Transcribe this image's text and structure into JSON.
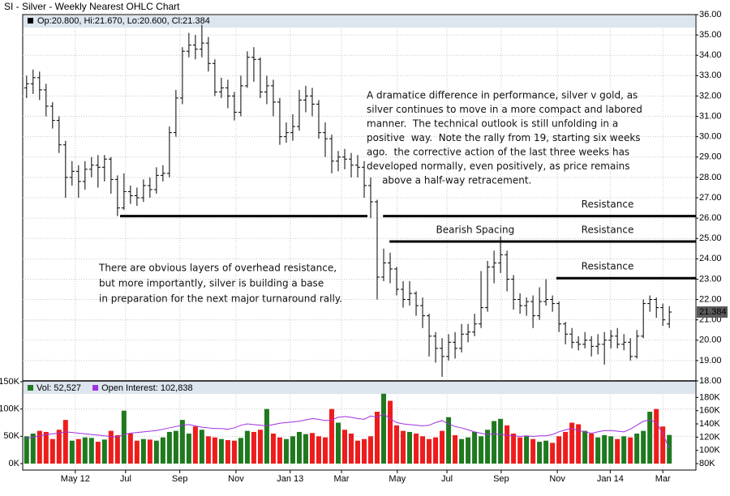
{
  "chart_data": [
    {
      "type": "ohlc",
      "title": "SI - Silver - Weekly Nearest OHLC Chart",
      "ohlc_legend": "Op:20.800, Hi:21.670, Lo:20.600, Cl:21.384",
      "last_label": "21.384",
      "color": "#000000",
      "xlim": [
        -0.6,
        103.1
      ],
      "ylim": [
        18,
        36
      ],
      "yticks": [
        {
          "value": 18,
          "label": "18.00"
        },
        {
          "value": 19,
          "label": "19.00"
        },
        {
          "value": 20,
          "label": "20.00"
        },
        {
          "value": 21,
          "label": "21.00"
        },
        {
          "value": 22,
          "label": "22.00"
        },
        {
          "value": 23,
          "label": "23.00"
        },
        {
          "value": 24,
          "label": "24.00"
        },
        {
          "value": 25,
          "label": "25.00"
        },
        {
          "value": 26,
          "label": "26.00"
        },
        {
          "value": 27,
          "label": "27.00"
        },
        {
          "value": 28,
          "label": "28.00"
        },
        {
          "value": 29,
          "label": "29.00"
        },
        {
          "value": 30,
          "label": "30.00"
        },
        {
          "value": 31,
          "label": "31.00"
        },
        {
          "value": 32,
          "label": "32.00"
        },
        {
          "value": 33,
          "label": "33.00"
        },
        {
          "value": 34,
          "label": "34.00"
        },
        {
          "value": 35,
          "label": "35.00"
        },
        {
          "value": 36,
          "label": "36.00"
        }
      ],
      "grid": true,
      "open": [
        32.4,
        32.6,
        32.9,
        32.3,
        31.5,
        30.8,
        29.6,
        28.0,
        28.3,
        27.8,
        28.4,
        28.6,
        28.5,
        28.9,
        27.9,
        26.5,
        27.3,
        27.1,
        27.0,
        27.6,
        27.4,
        28.1,
        28.2,
        30.2,
        31.9,
        34.2,
        34.5,
        34.3,
        34.6,
        33.6,
        32.2,
        32.4,
        32.0,
        31.2,
        32.5,
        33.9,
        33.8,
        32.2,
        32.5,
        31.7,
        30.0,
        30.2,
        30.5,
        31.8,
        32.0,
        31.6,
        30.2,
        29.9,
        28.8,
        29.0,
        28.9,
        28.6,
        28.5,
        27.6,
        26.8,
        23.1,
        23.8,
        23.5,
        22.5,
        22.0,
        22.3,
        21.7,
        21.2,
        20.2,
        19.6,
        19.2,
        19.9,
        19.6,
        20.3,
        20.4,
        20.8,
        21.6,
        23.6,
        23.8,
        24.2,
        23.0,
        22.0,
        21.7,
        21.9,
        21.2,
        21.9,
        22.0,
        21.8,
        20.8,
        20.3,
        19.9,
        19.8,
        20.0,
        19.7,
        19.8,
        20.0,
        20.2,
        19.8,
        19.9,
        19.2,
        20.2,
        21.8,
        22.0,
        21.6,
        20.8
      ],
      "high": [
        33.0,
        33.3,
        33.2,
        32.6,
        31.7,
        31.0,
        29.8,
        28.8,
        28.6,
        28.8,
        29.0,
        29.1,
        29.1,
        29.0,
        28.1,
        28.2,
        27.6,
        27.5,
        27.9,
        28.0,
        28.5,
        28.6,
        30.5,
        32.3,
        34.4,
        35.1,
        35.0,
        35.5,
        34.9,
        33.8,
        32.9,
        32.8,
        32.2,
        33.0,
        34.2,
        34.4,
        33.9,
        33.0,
        32.8,
        31.9,
        30.7,
        31.1,
        32.3,
        32.5,
        32.4,
        31.8,
        30.7,
        30.1,
        29.3,
        29.4,
        29.2,
        29.1,
        28.8,
        28.0,
        26.9,
        24.5,
        24.3,
        23.6,
        22.9,
        22.9,
        22.4,
        22.1,
        21.3,
        20.4,
        20.1,
        20.3,
        20.4,
        20.8,
        20.8,
        21.3,
        23.4,
        23.9,
        24.4,
        25.1,
        24.4,
        23.2,
        22.3,
        22.1,
        22.2,
        22.6,
        23.0,
        22.2,
        21.9,
        20.9,
        20.6,
        20.2,
        20.4,
        20.2,
        20.3,
        20.4,
        20.5,
        20.6,
        20.3,
        20.1,
        20.5,
        22.0,
        22.2,
        22.1,
        21.8,
        21.67
      ],
      "low": [
        31.9,
        32.1,
        31.8,
        31.0,
        30.4,
        29.2,
        27.0,
        27.6,
        27.0,
        27.4,
        28.0,
        27.5,
        27.8,
        27.2,
        26.1,
        26.4,
        26.7,
        26.6,
        26.8,
        27.0,
        27.2,
        27.8,
        28.0,
        30.0,
        31.6,
        33.9,
        33.8,
        33.9,
        33.2,
        32.0,
        31.9,
        31.4,
        30.8,
        31.0,
        32.4,
        32.7,
        31.9,
        31.6,
        31.0,
        29.6,
        29.7,
        29.8,
        30.3,
        31.2,
        31.0,
        29.9,
        29.0,
        28.2,
        28.3,
        28.4,
        28.0,
        28.0,
        27.0,
        26.0,
        22.0,
        22.9,
        22.8,
        22.2,
        21.6,
        21.7,
        21.2,
        20.6,
        19.2,
        18.9,
        18.2,
        19.0,
        19.1,
        19.4,
        19.9,
        20.2,
        20.6,
        21.4,
        22.8,
        23.3,
        22.4,
        21.5,
        21.3,
        21.2,
        20.6,
        21.0,
        21.7,
        21.4,
        20.4,
        19.8,
        19.6,
        19.5,
        19.6,
        19.2,
        19.3,
        18.8,
        19.6,
        19.6,
        19.5,
        19.0,
        19.1,
        20.1,
        21.4,
        21.1,
        20.7,
        20.6
      ],
      "close": [
        32.6,
        32.9,
        32.3,
        31.5,
        30.8,
        29.6,
        28.0,
        28.3,
        27.8,
        28.4,
        28.6,
        28.5,
        28.9,
        27.9,
        26.5,
        27.3,
        27.1,
        27.0,
        27.6,
        27.4,
        28.1,
        28.2,
        30.2,
        31.9,
        34.2,
        34.5,
        34.3,
        34.6,
        33.6,
        32.2,
        32.4,
        32.0,
        31.2,
        32.5,
        33.9,
        33.8,
        32.2,
        32.5,
        31.7,
        30.0,
        30.2,
        30.5,
        31.8,
        32.0,
        31.6,
        30.2,
        29.9,
        28.8,
        29.0,
        28.9,
        28.6,
        28.5,
        27.6,
        26.8,
        23.1,
        23.8,
        23.5,
        22.5,
        22.0,
        22.3,
        21.7,
        21.2,
        20.2,
        19.6,
        19.2,
        19.9,
        19.6,
        20.3,
        20.4,
        20.8,
        21.6,
        23.6,
        23.8,
        24.2,
        23.0,
        22.0,
        21.7,
        21.9,
        21.2,
        21.9,
        22.0,
        21.8,
        20.8,
        20.3,
        19.9,
        19.8,
        20.0,
        19.7,
        19.8,
        20.0,
        20.2,
        19.8,
        19.9,
        19.2,
        20.2,
        21.8,
        22.0,
        21.6,
        21.0,
        21.384
      ],
      "lines": [
        {
          "level": 26.1,
          "from": 14.4,
          "to": 52.5
        },
        {
          "level": 26.1,
          "from": 54.9,
          "to": 103.1,
          "label": "Resistance"
        },
        {
          "level": 24.85,
          "from": 55.9,
          "to": 103.1,
          "label": "Resistance"
        },
        {
          "level": 23.05,
          "from": 81.6,
          "to": 103.1,
          "label": "Resistance"
        }
      ],
      "annotations": [
        {
          "text": "Bearish Spacing",
          "x": 69.1,
          "y": 25.4
        }
      ],
      "commentary": [
        "A dramatice difference in performance, silver v gold, as",
        "silver continues to move in a more compact and labored",
        "manner.  The technical outlook is still unfolding in a",
        "positive  way.  Note the rally from 19, starting six weeks",
        "ago.  the corrective action of the last three weeks has",
        "developed normally, even positively, as price remains",
        "     above a half-way retracement."
      ],
      "note": [
        "There are obvious layers of overhead resistance,",
        "but more importantly, silver is building a base",
        "in preparation for the next major turnaround rally."
      ]
    },
    {
      "type": "bar",
      "xlim": [
        -0.6,
        103.1
      ],
      "xticks": [
        {
          "value": 7.5,
          "label": "May 12"
        },
        {
          "value": 15.25,
          "label": "Jul"
        },
        {
          "value": 23.6,
          "label": "Sep"
        },
        {
          "value": 32.25,
          "label": "Nov"
        },
        {
          "value": 40.6,
          "label": "Jan 13"
        },
        {
          "value": 48.5,
          "label": "Mar"
        },
        {
          "value": 57.1,
          "label": "May"
        },
        {
          "value": 64.75,
          "label": "Jul"
        },
        {
          "value": 73.1,
          "label": "Sep"
        },
        {
          "value": 81.75,
          "label": "Nov"
        },
        {
          "value": 89.9,
          "label": "Jan 14"
        },
        {
          "value": 98,
          "label": "Mar"
        }
      ],
      "ylim": [
        0,
        150000
      ],
      "yticks": [
        {
          "value": 0,
          "label": "0K"
        },
        {
          "value": 50000,
          "label": "50K"
        },
        {
          "value": 100000,
          "label": "100K"
        },
        {
          "value": 150000,
          "label": "150K"
        }
      ],
      "y2lim": [
        80000,
        205000
      ],
      "y2ticks": [
        {
          "value": 80000,
          "label": "80K"
        },
        {
          "value": 100000,
          "label": "100K"
        },
        {
          "value": 120000,
          "label": "120K"
        },
        {
          "value": 140000,
          "label": "140K"
        },
        {
          "value": 160000,
          "label": "160K"
        },
        {
          "value": 180000,
          "label": "180K"
        }
      ],
      "grid": true,
      "series": [
        {
          "name": "Vol: 52,527",
          "color": "#1f7a1f",
          "down_color": "#ee1c1c",
          "values": [
            50000,
            55000,
            60000,
            58000,
            45000,
            62000,
            80000,
            42000,
            45000,
            48000,
            47000,
            40000,
            44000,
            60000,
            52000,
            97000,
            55000,
            42000,
            45000,
            44000,
            42000,
            48000,
            58000,
            60000,
            80000,
            55000,
            68000,
            62000,
            50000,
            48000,
            45000,
            43000,
            42000,
            47000,
            60000,
            58000,
            62000,
            100000,
            55000,
            48000,
            45000,
            50000,
            58000,
            54000,
            56000,
            50000,
            48000,
            100000,
            75000,
            62000,
            55000,
            42000,
            45000,
            50000,
            95000,
            128000,
            115000,
            70000,
            60000,
            58000,
            55000,
            50000,
            45000,
            48000,
            60000,
            85000,
            52000,
            45000,
            48000,
            58000,
            50000,
            62000,
            78000,
            82000,
            70000,
            55000,
            48000,
            50000,
            45000,
            40000,
            42000,
            38000,
            50000,
            58000,
            75000,
            72000,
            60000,
            55000,
            48000,
            52000,
            50000,
            45000,
            50000,
            48000,
            55000,
            60000,
            95000,
            100000,
            68000,
            52527
          ]
        },
        {
          "name": "Open Interest: 102,838",
          "color": "#a030e0",
          "axis": "y2",
          "values": [
            118000,
            120000,
            122000,
            124000,
            125000,
            126000,
            128000,
            127000,
            126000,
            125000,
            124000,
            123000,
            122000,
            121000,
            120000,
            124000,
            126000,
            127000,
            128000,
            129000,
            130000,
            132000,
            134000,
            136000,
            138000,
            139000,
            137000,
            135000,
            134000,
            133000,
            133000,
            132000,
            134000,
            138000,
            140000,
            139000,
            138000,
            137000,
            139000,
            141000,
            142000,
            143000,
            144000,
            146000,
            148000,
            147000,
            145000,
            146000,
            150000,
            151000,
            150000,
            148000,
            147000,
            152000,
            150000,
            155000,
            148000,
            142000,
            140000,
            139000,
            138000,
            137000,
            138000,
            142000,
            145000,
            140000,
            136000,
            134000,
            131000,
            128000,
            126000,
            124000,
            125000,
            124000,
            123000,
            122000,
            121000,
            122000,
            121000,
            122000,
            122000,
            124000,
            128000,
            131000,
            133000,
            130000,
            128000,
            126000,
            128000,
            130000,
            130000,
            129000,
            128000,
            132000,
            138000,
            144000,
            146000,
            142000,
            125000,
            102838
          ]
        }
      ]
    }
  ]
}
